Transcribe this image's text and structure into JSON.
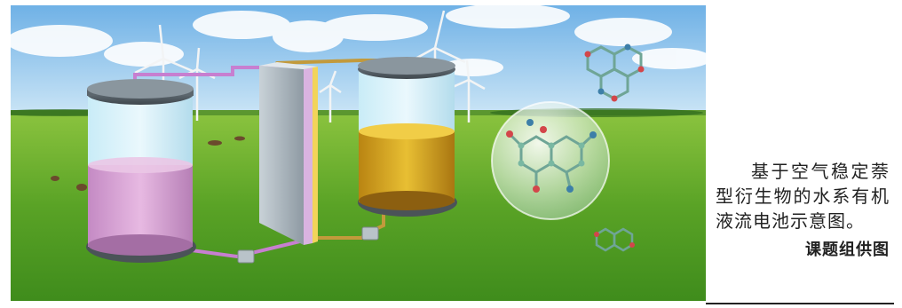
{
  "caption": {
    "text": "基于空气稳定萘型衍生物的水系有机液流电池示意图。",
    "credit": "课题组供图"
  },
  "colors": {
    "sky": "#8fc4ea",
    "grass": "#5fa52a",
    "left_electrolyte": "#d9a3d6",
    "right_electrolyte": "#d8a81b"
  }
}
